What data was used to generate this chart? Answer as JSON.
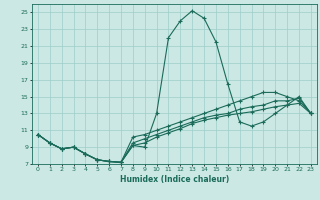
{
  "xlabel": "Humidex (Indice chaleur)",
  "bg_color": "#cce8e4",
  "line_color": "#1a6b5a",
  "grid_color": "#9ecec8",
  "xlim": [
    -0.5,
    23.5
  ],
  "ylim": [
    7,
    26
  ],
  "xticks": [
    0,
    1,
    2,
    3,
    4,
    5,
    6,
    7,
    8,
    9,
    10,
    11,
    12,
    13,
    14,
    15,
    16,
    17,
    18,
    19,
    20,
    21,
    22,
    23
  ],
  "yticks": [
    7,
    9,
    11,
    13,
    15,
    17,
    19,
    21,
    23,
    25
  ],
  "lines": [
    {
      "x": [
        0,
        1,
        2,
        3,
        4,
        5,
        6,
        7,
        8,
        9,
        10,
        11,
        12,
        13,
        14,
        15,
        16,
        17,
        18,
        19,
        20,
        21,
        22,
        23
      ],
      "y": [
        10.5,
        9.5,
        8.8,
        9.0,
        8.2,
        7.5,
        7.3,
        7.2,
        9.2,
        9.0,
        13.0,
        22.0,
        24.0,
        25.2,
        24.3,
        21.5,
        16.5,
        12.0,
        11.5,
        12.0,
        13.0,
        14.0,
        15.0,
        13.0
      ]
    },
    {
      "x": [
        0,
        1,
        2,
        3,
        4,
        5,
        6,
        7,
        8,
        9,
        10,
        11,
        12,
        13,
        14,
        15,
        16,
        17,
        18,
        19,
        20,
        21,
        22,
        23
      ],
      "y": [
        10.5,
        9.5,
        8.8,
        9.0,
        8.2,
        7.5,
        7.3,
        7.2,
        10.2,
        10.5,
        11.0,
        11.5,
        12.0,
        12.5,
        13.0,
        13.5,
        14.0,
        14.5,
        15.0,
        15.5,
        15.5,
        15.0,
        14.5,
        13.0
      ]
    },
    {
      "x": [
        0,
        1,
        2,
        3,
        4,
        5,
        6,
        7,
        8,
        9,
        10,
        11,
        12,
        13,
        14,
        15,
        16,
        17,
        18,
        19,
        20,
        21,
        22,
        23
      ],
      "y": [
        10.5,
        9.5,
        8.8,
        9.0,
        8.2,
        7.5,
        7.3,
        7.2,
        9.5,
        10.0,
        10.5,
        11.0,
        11.5,
        12.0,
        12.5,
        12.8,
        13.0,
        13.5,
        13.8,
        14.0,
        14.5,
        14.5,
        14.8,
        13.0
      ]
    },
    {
      "x": [
        0,
        1,
        2,
        3,
        4,
        5,
        6,
        7,
        8,
        9,
        10,
        11,
        12,
        13,
        14,
        15,
        16,
        17,
        18,
        19,
        20,
        21,
        22,
        23
      ],
      "y": [
        10.5,
        9.5,
        8.8,
        9.0,
        8.2,
        7.5,
        7.3,
        7.2,
        9.2,
        9.5,
        10.2,
        10.7,
        11.2,
        11.8,
        12.2,
        12.5,
        12.8,
        13.0,
        13.2,
        13.5,
        13.8,
        14.0,
        14.2,
        13.0
      ]
    }
  ]
}
